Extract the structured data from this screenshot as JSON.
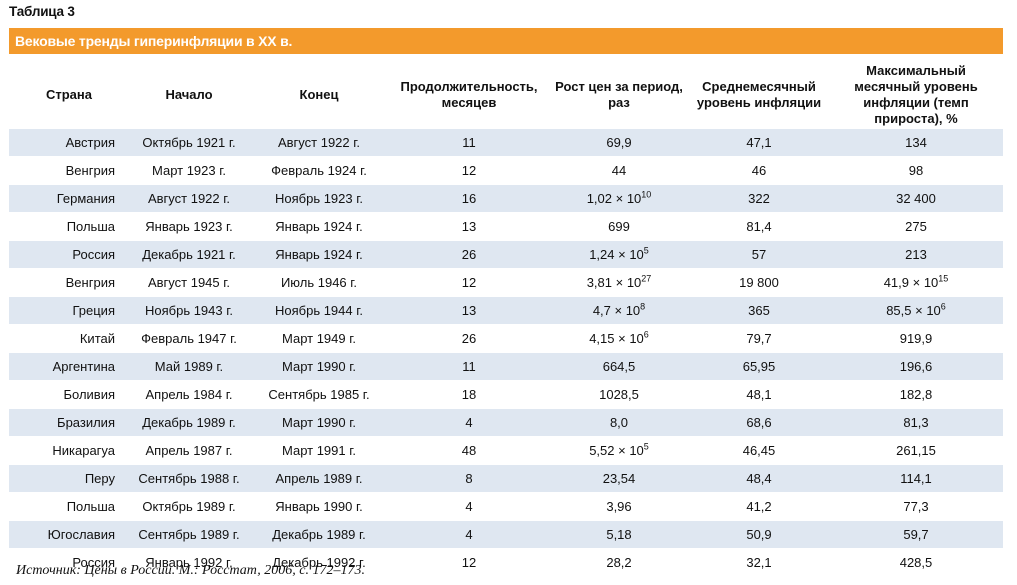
{
  "table_label": "Таблица 3",
  "title": "Вековые тренды гиперинфляции в XX в.",
  "headers": [
    "Страна",
    "Начало",
    "Конец",
    "Продолжительность, месяцев",
    "Рост цен за период, раз",
    "Среднемесячный уровень инфляции",
    "Максимальный месячный уровень инфляции (темп прироста), %"
  ],
  "rows": [
    {
      "country": "Австрия",
      "start": "Октябрь 1921 г.",
      "end": "Август 1922 г.",
      "duration": "11",
      "growth": {
        "mant": "69,9",
        "exp": ""
      },
      "avg": "47,1",
      "max": {
        "mant": "134",
        "exp": ""
      }
    },
    {
      "country": "Венгрия",
      "start": "Март 1923 г.",
      "end": "Февраль 1924 г.",
      "duration": "12",
      "growth": {
        "mant": "44",
        "exp": ""
      },
      "avg": "46",
      "max": {
        "mant": "98",
        "exp": ""
      }
    },
    {
      "country": "Германия",
      "start": "Август 1922 г.",
      "end": "Ноябрь 1923 г.",
      "duration": "16",
      "growth": {
        "mant": "1,02 × 10",
        "exp": "10"
      },
      "avg": "322",
      "max": {
        "mant": "32 400",
        "exp": ""
      }
    },
    {
      "country": "Польша",
      "start": "Январь 1923 г.",
      "end": "Январь 1924 г.",
      "duration": "13",
      "growth": {
        "mant": "699",
        "exp": ""
      },
      "avg": "81,4",
      "max": {
        "mant": "275",
        "exp": ""
      }
    },
    {
      "country": "Россия",
      "start": "Декабрь 1921 г.",
      "end": "Январь 1924 г.",
      "duration": "26",
      "growth": {
        "mant": "1,24 × 10",
        "exp": "5"
      },
      "avg": "57",
      "max": {
        "mant": "213",
        "exp": ""
      }
    },
    {
      "country": "Венгрия",
      "start": "Август 1945 г.",
      "end": "Июль 1946 г.",
      "duration": "12",
      "growth": {
        "mant": "3,81 × 10",
        "exp": "27"
      },
      "avg": "19 800",
      "max": {
        "mant": "41,9 × 10",
        "exp": "15"
      }
    },
    {
      "country": "Греция",
      "start": "Ноябрь 1943 г.",
      "end": "Ноябрь 1944 г.",
      "duration": "13",
      "growth": {
        "mant": "4,7 × 10",
        "exp": "8"
      },
      "avg": "365",
      "max": {
        "mant": "85,5 × 10",
        "exp": "6"
      }
    },
    {
      "country": "Китай",
      "start": "Февраль 1947 г.",
      "end": "Март 1949 г.",
      "duration": "26",
      "growth": {
        "mant": "4,15 × 10",
        "exp": "6"
      },
      "avg": "79,7",
      "max": {
        "mant": "919,9",
        "exp": ""
      }
    },
    {
      "country": "Аргентина",
      "start": "Май 1989 г.",
      "end": "Март 1990 г.",
      "duration": "11",
      "growth": {
        "mant": "664,5",
        "exp": ""
      },
      "avg": "65,95",
      "max": {
        "mant": "196,6",
        "exp": ""
      }
    },
    {
      "country": "Боливия",
      "start": "Апрель 1984 г.",
      "end": "Сентябрь 1985 г.",
      "duration": "18",
      "growth": {
        "mant": "1028,5",
        "exp": ""
      },
      "avg": "48,1",
      "max": {
        "mant": "182,8",
        "exp": ""
      }
    },
    {
      "country": "Бразилия",
      "start": "Декабрь 1989 г.",
      "end": "Март 1990 г.",
      "duration": "4",
      "growth": {
        "mant": "8,0",
        "exp": ""
      },
      "avg": "68,6",
      "max": {
        "mant": "81,3",
        "exp": ""
      }
    },
    {
      "country": "Никарагуа",
      "start": "Апрель 1987 г.",
      "end": "Март 1991 г.",
      "duration": "48",
      "growth": {
        "mant": "5,52 × 10",
        "exp": "5"
      },
      "avg": "46,45",
      "max": {
        "mant": "261,15",
        "exp": ""
      }
    },
    {
      "country": "Перу",
      "start": "Сентябрь 1988 г.",
      "end": "Апрель 1989 г.",
      "duration": "8",
      "growth": {
        "mant": "23,54",
        "exp": ""
      },
      "avg": "48,4",
      "max": {
        "mant": "114,1",
        "exp": ""
      }
    },
    {
      "country": "Польша",
      "start": "Октябрь 1989 г.",
      "end": "Январь 1990 г.",
      "duration": "4",
      "growth": {
        "mant": "3,96",
        "exp": ""
      },
      "avg": "41,2",
      "max": {
        "mant": "77,3",
        "exp": ""
      }
    },
    {
      "country": "Югославия",
      "start": "Сентябрь 1989 г.",
      "end": "Декабрь 1989 г.",
      "duration": "4",
      "growth": {
        "mant": "5,18",
        "exp": ""
      },
      "avg": "50,9",
      "max": {
        "mant": "59,7",
        "exp": ""
      }
    },
    {
      "country": "Россия",
      "start": "Январь 1992 г.",
      "end": "Декабрь 1992 г.",
      "duration": "12",
      "growth": {
        "mant": "28,2",
        "exp": ""
      },
      "avg": "32,1",
      "max": {
        "mant": "428,5",
        "exp": ""
      }
    }
  ],
  "source": "Источник: Цены в России. М.: Росстат, 2006, с. 172–173.",
  "colors": {
    "title_bar": "#f39a2c",
    "row_stripe": "#dfe7f1",
    "title_text": "#ffffff"
  }
}
